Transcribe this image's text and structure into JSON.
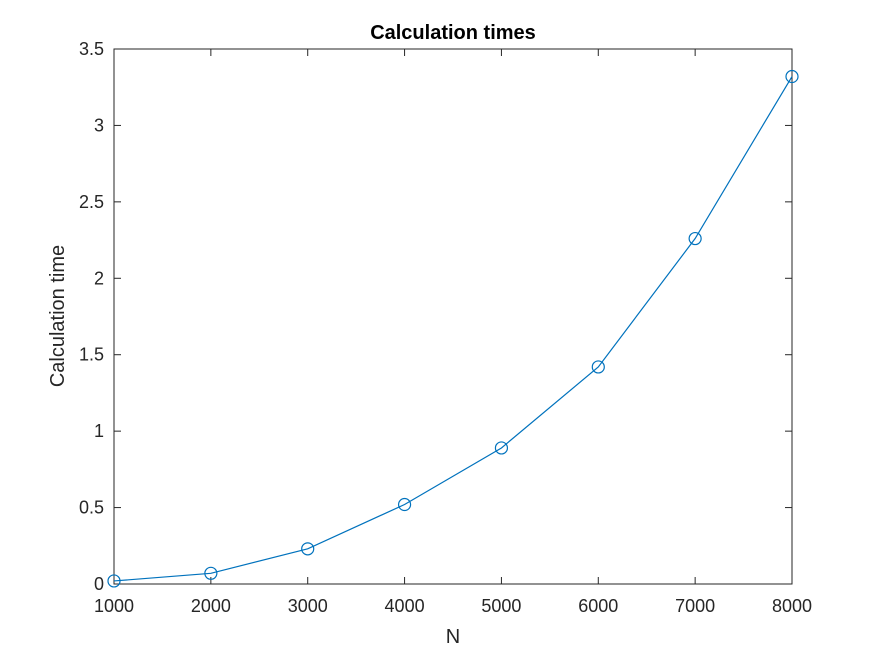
{
  "chart_data": {
    "type": "line",
    "title": "Calculation times",
    "xlabel": "N",
    "ylabel": "Calculation time",
    "xlim": [
      1000,
      8000
    ],
    "ylim": [
      0,
      3.5
    ],
    "xticks": [
      1000,
      2000,
      3000,
      4000,
      5000,
      6000,
      7000,
      8000
    ],
    "xtick_labels": [
      "1000",
      "2000",
      "3000",
      "4000",
      "5000",
      "6000",
      "7000",
      "8000"
    ],
    "yticks": [
      0,
      0.5,
      1,
      1.5,
      2,
      2.5,
      3,
      3.5
    ],
    "ytick_labels": [
      "0",
      "0.5",
      "1",
      "1.5",
      "2",
      "2.5",
      "3",
      "3.5"
    ],
    "grid": false,
    "legend": "none",
    "marker": "circle",
    "series": [
      {
        "color": "#0072BD",
        "x": [
          1000,
          2000,
          3000,
          4000,
          5000,
          6000,
          7000,
          8000
        ],
        "y": [
          0.02,
          0.07,
          0.23,
          0.52,
          0.89,
          1.42,
          2.26,
          3.32
        ]
      }
    ]
  }
}
